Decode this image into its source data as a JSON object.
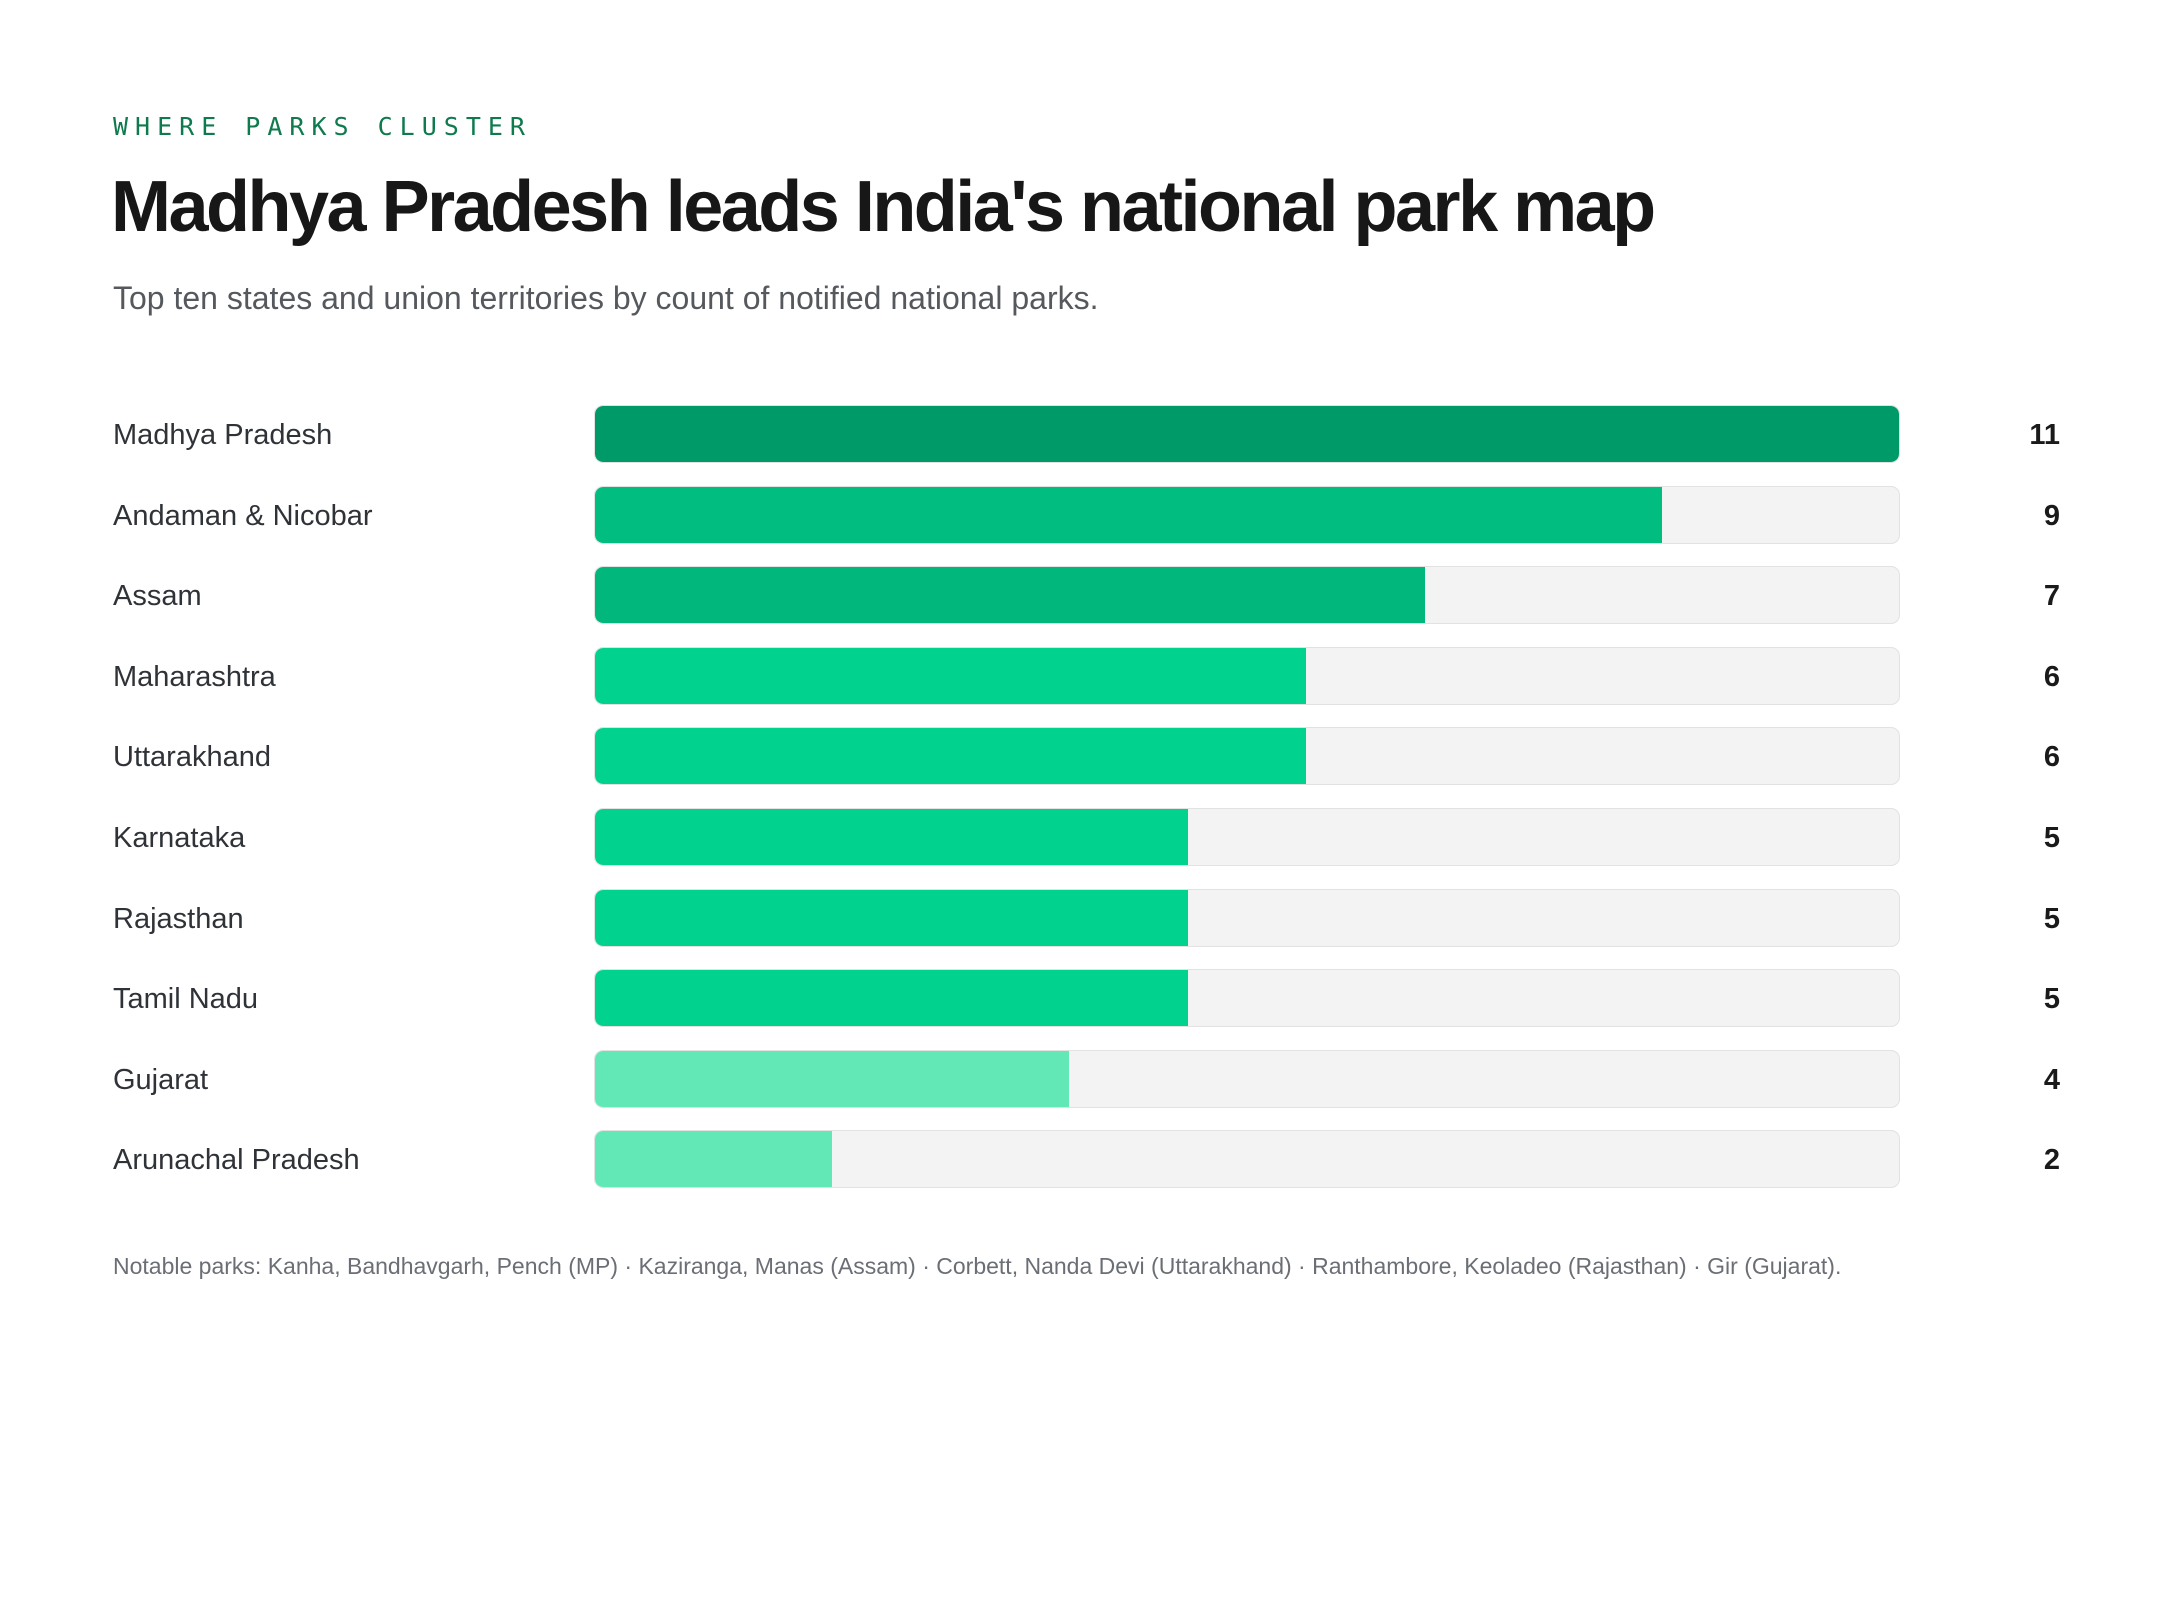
{
  "header": {
    "kicker": "WHERE PARKS CLUSTER",
    "title": "Madhya Pradesh leads India's national park map",
    "subtitle": "Top ten states and union territories by count of notified national parks."
  },
  "chart_data": {
    "type": "bar",
    "orientation": "horizontal",
    "title": "Madhya Pradesh leads India's national park map",
    "subtitle": "Top ten states and union territories by count of notified national parks.",
    "xlim": [
      0,
      11
    ],
    "grid": false,
    "categories": [
      "Madhya Pradesh",
      "Andaman & Nicobar",
      "Assam",
      "Maharashtra",
      "Uttarakhand",
      "Karnataka",
      "Rajasthan",
      "Tamil Nadu",
      "Gujarat",
      "Arunachal Pradesh"
    ],
    "values": [
      11,
      9,
      7,
      6,
      6,
      5,
      5,
      5,
      4,
      2
    ],
    "value_labels": [
      "11",
      "9",
      "7",
      "6",
      "6",
      "5",
      "5",
      "5",
      "4",
      "2"
    ],
    "bar_colors": [
      "#009a68",
      "#01bd7f",
      "#01b77b",
      "#01d38f",
      "#01d38f",
      "#01d38f",
      "#01d38f",
      "#01d38f",
      "#61e8b6",
      "#61e8b6"
    ],
    "track_color": "#f3f3f3"
  },
  "footnote": "Notable parks: Kanha, Bandhavgarh, Pench (MP) · Kaziranga, Manas (Assam) · Corbett, Nanda Devi (Uttarakhand) · Ranthambore, Keoladeo (Rajasthan) · Gir (Gujarat)."
}
